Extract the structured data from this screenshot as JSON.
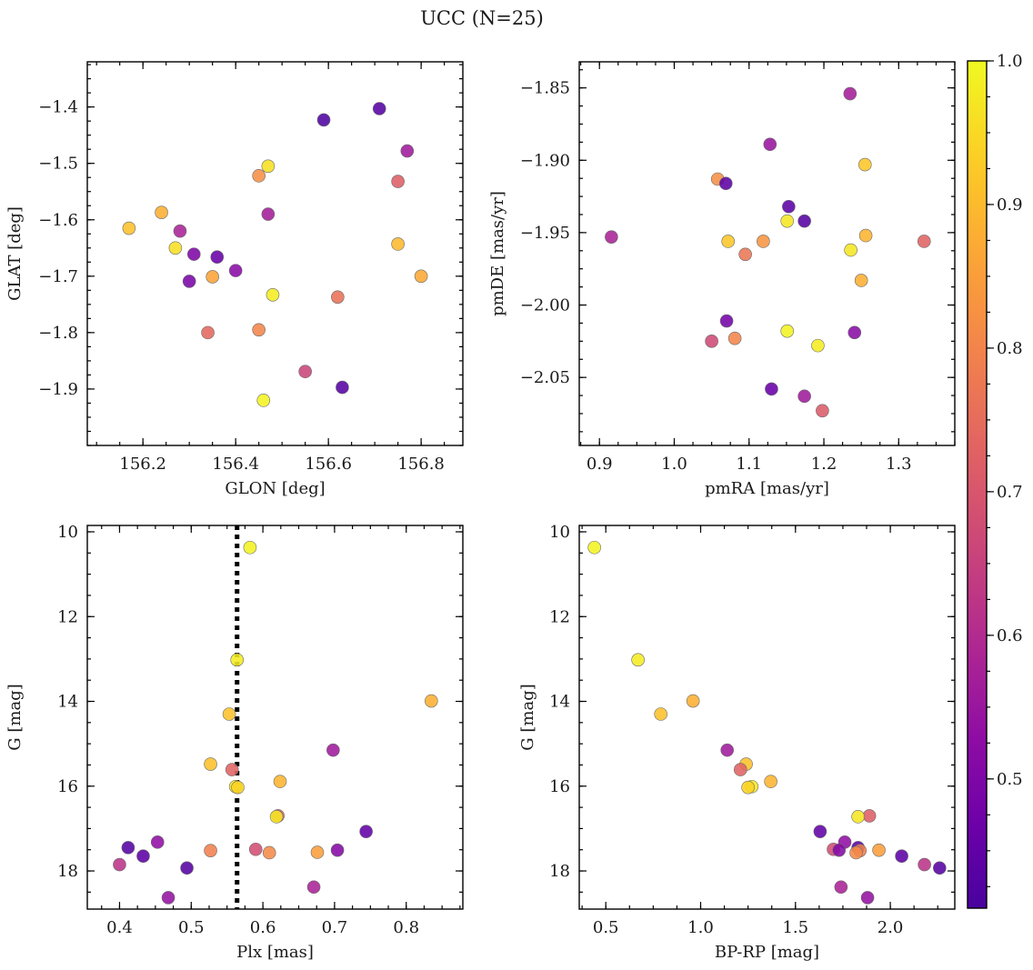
{
  "figure": {
    "title": "UCC (N=25)",
    "colorbar": {
      "colormap": "plasma",
      "range": [
        0.41,
        1.0
      ],
      "ticks": [
        "0.5",
        "0.6",
        "0.7",
        "0.8",
        "0.9",
        "1.0"
      ],
      "tick_values": [
        0.5,
        0.6,
        0.7,
        0.8,
        0.9,
        1.0
      ]
    }
  },
  "chart_data": [
    {
      "type": "scatter",
      "name": "sky-positions",
      "xlabel": "GLON [deg]",
      "ylabel": "GLAT [deg]",
      "xlim": [
        156.08,
        156.89
      ],
      "ylim": [
        -2.0,
        -1.32
      ],
      "y_inverted": false,
      "xticks": [
        "156.2",
        "156.4",
        "156.6",
        "156.8"
      ],
      "xtick_values": [
        156.2,
        156.4,
        156.6,
        156.8
      ],
      "yticks": [
        "-1.9",
        "-1.8",
        "-1.7",
        "-1.6",
        "-1.5",
        "-1.4"
      ],
      "ytick_values": [
        -1.9,
        -1.8,
        -1.7,
        -1.6,
        -1.5,
        -1.4
      ],
      "points": [
        {
          "x": 156.59,
          "y": -1.423,
          "c": 0.42
        },
        {
          "x": 156.71,
          "y": -1.403,
          "c": 0.43
        },
        {
          "x": 156.77,
          "y": -1.478,
          "c": 0.56
        },
        {
          "x": 156.47,
          "y": -1.505,
          "c": 0.96
        },
        {
          "x": 156.45,
          "y": -1.522,
          "c": 0.82
        },
        {
          "x": 156.75,
          "y": -1.532,
          "c": 0.72
        },
        {
          "x": 156.24,
          "y": -1.587,
          "c": 0.88
        },
        {
          "x": 156.47,
          "y": -1.59,
          "c": 0.57
        },
        {
          "x": 156.17,
          "y": -1.615,
          "c": 0.91
        },
        {
          "x": 156.28,
          "y": -1.62,
          "c": 0.58
        },
        {
          "x": 156.75,
          "y": -1.643,
          "c": 0.9
        },
        {
          "x": 156.27,
          "y": -1.65,
          "c": 0.96
        },
        {
          "x": 156.31,
          "y": -1.661,
          "c": 0.5
        },
        {
          "x": 156.36,
          "y": -1.666,
          "c": 0.46
        },
        {
          "x": 156.4,
          "y": -1.69,
          "c": 0.52
        },
        {
          "x": 156.35,
          "y": -1.701,
          "c": 0.86
        },
        {
          "x": 156.8,
          "y": -1.7,
          "c": 0.87
        },
        {
          "x": 156.3,
          "y": -1.709,
          "c": 0.49
        },
        {
          "x": 156.48,
          "y": -1.733,
          "c": 0.98
        },
        {
          "x": 156.62,
          "y": -1.737,
          "c": 0.76
        },
        {
          "x": 156.34,
          "y": -1.8,
          "c": 0.74
        },
        {
          "x": 156.45,
          "y": -1.795,
          "c": 0.8
        },
        {
          "x": 156.55,
          "y": -1.869,
          "c": 0.66
        },
        {
          "x": 156.63,
          "y": -1.897,
          "c": 0.43
        },
        {
          "x": 156.46,
          "y": -1.92,
          "c": 0.99
        }
      ]
    },
    {
      "type": "scatter",
      "name": "proper-motions",
      "xlabel": "pmRA [mas/yr]",
      "ylabel": "pmDE [mas/yr]",
      "xlim": [
        0.873,
        1.375
      ],
      "ylim": [
        -2.097,
        -1.832
      ],
      "y_inverted": false,
      "xticks": [
        "0.9",
        "1.0",
        "1.1",
        "1.2",
        "1.3"
      ],
      "xtick_values": [
        0.9,
        1.0,
        1.1,
        1.2,
        1.3
      ],
      "yticks": [
        "-2.05",
        "-2.00",
        "-1.95",
        "-1.90",
        "-1.85"
      ],
      "ytick_values": [
        -2.05,
        -2.0,
        -1.95,
        -1.9,
        -1.85
      ],
      "points": [
        {
          "x": 1.235,
          "y": -1.854,
          "c": 0.57
        },
        {
          "x": 1.128,
          "y": -1.889,
          "c": 0.55
        },
        {
          "x": 1.255,
          "y": -1.903,
          "c": 0.92
        },
        {
          "x": 1.058,
          "y": -1.913,
          "c": 0.82
        },
        {
          "x": 1.069,
          "y": -1.916,
          "c": 0.44
        },
        {
          "x": 1.153,
          "y": -1.932,
          "c": 0.44
        },
        {
          "x": 1.151,
          "y": -1.942,
          "c": 0.97
        },
        {
          "x": 1.174,
          "y": -1.942,
          "c": 0.43
        },
        {
          "x": 1.256,
          "y": -1.952,
          "c": 0.89
        },
        {
          "x": 0.916,
          "y": -1.953,
          "c": 0.58
        },
        {
          "x": 1.072,
          "y": -1.956,
          "c": 0.92
        },
        {
          "x": 1.119,
          "y": -1.956,
          "c": 0.83
        },
        {
          "x": 1.334,
          "y": -1.956,
          "c": 0.73
        },
        {
          "x": 1.236,
          "y": -1.962,
          "c": 0.97
        },
        {
          "x": 1.095,
          "y": -1.965,
          "c": 0.77
        },
        {
          "x": 1.25,
          "y": -1.983,
          "c": 0.88
        },
        {
          "x": 1.07,
          "y": -2.011,
          "c": 0.48
        },
        {
          "x": 1.151,
          "y": -2.018,
          "c": 0.99
        },
        {
          "x": 1.241,
          "y": -2.019,
          "c": 0.52
        },
        {
          "x": 1.081,
          "y": -2.023,
          "c": 0.8
        },
        {
          "x": 1.05,
          "y": -2.025,
          "c": 0.67
        },
        {
          "x": 1.192,
          "y": -2.028,
          "c": 0.98
        },
        {
          "x": 1.13,
          "y": -2.058,
          "c": 0.46
        },
        {
          "x": 1.174,
          "y": -2.063,
          "c": 0.56
        },
        {
          "x": 1.198,
          "y": -2.073,
          "c": 0.71
        }
      ]
    },
    {
      "type": "scatter",
      "name": "parallax-magnitude",
      "xlabel": "Plx [mas]",
      "ylabel": "G [mag]",
      "xlim": [
        0.355,
        0.879
      ],
      "ylim": [
        9.85,
        18.9
      ],
      "y_inverted": true,
      "xticks": [
        "0.4",
        "0.5",
        "0.6",
        "0.7",
        "0.8"
      ],
      "xtick_values": [
        0.4,
        0.5,
        0.6,
        0.7,
        0.8
      ],
      "yticks": [
        "10",
        "12",
        "14",
        "16",
        "18"
      ],
      "ytick_values": [
        10,
        12,
        14,
        16,
        18
      ],
      "vline": 0.564,
      "points": [
        {
          "x": 0.582,
          "y": 10.37,
          "c": 0.99
        },
        {
          "x": 0.564,
          "y": 13.02,
          "c": 0.98
        },
        {
          "x": 0.553,
          "y": 14.3,
          "c": 0.91
        },
        {
          "x": 0.835,
          "y": 13.99,
          "c": 0.88
        },
        {
          "x": 0.698,
          "y": 15.15,
          "c": 0.56
        },
        {
          "x": 0.527,
          "y": 15.48,
          "c": 0.91
        },
        {
          "x": 0.557,
          "y": 15.61,
          "c": 0.73
        },
        {
          "x": 0.624,
          "y": 15.89,
          "c": 0.89
        },
        {
          "x": 0.562,
          "y": 16.01,
          "c": 0.97
        },
        {
          "x": 0.565,
          "y": 16.03,
          "c": 0.94
        },
        {
          "x": 0.621,
          "y": 16.7,
          "c": 0.72
        },
        {
          "x": 0.619,
          "y": 16.72,
          "c": 0.97
        },
        {
          "x": 0.744,
          "y": 17.07,
          "c": 0.45
        },
        {
          "x": 0.453,
          "y": 17.32,
          "c": 0.53
        },
        {
          "x": 0.412,
          "y": 17.45,
          "c": 0.43
        },
        {
          "x": 0.527,
          "y": 17.52,
          "c": 0.79
        },
        {
          "x": 0.59,
          "y": 17.49,
          "c": 0.68
        },
        {
          "x": 0.609,
          "y": 17.57,
          "c": 0.81
        },
        {
          "x": 0.676,
          "y": 17.56,
          "c": 0.85
        },
        {
          "x": 0.704,
          "y": 17.51,
          "c": 0.51
        },
        {
          "x": 0.433,
          "y": 17.65,
          "c": 0.44
        },
        {
          "x": 0.4,
          "y": 17.85,
          "c": 0.62
        },
        {
          "x": 0.494,
          "y": 17.93,
          "c": 0.43
        },
        {
          "x": 0.671,
          "y": 18.38,
          "c": 0.58
        },
        {
          "x": 0.468,
          "y": 18.63,
          "c": 0.54
        }
      ]
    },
    {
      "type": "scatter",
      "name": "color-magnitude",
      "xlabel": "BP-RP [mag]",
      "ylabel": "G [mag]",
      "xlim": [
        0.36,
        2.34
      ],
      "ylim": [
        9.85,
        18.9
      ],
      "y_inverted": true,
      "xticks": [
        "0.5",
        "1.0",
        "1.5",
        "2.0"
      ],
      "xtick_values": [
        0.5,
        1.0,
        1.5,
        2.0
      ],
      "yticks": [
        "10",
        "12",
        "14",
        "16",
        "18"
      ],
      "ytick_values": [
        10,
        12,
        14,
        16,
        18
      ],
      "points": [
        {
          "x": 0.44,
          "y": 10.37,
          "c": 0.99
        },
        {
          "x": 0.67,
          "y": 13.02,
          "c": 0.98
        },
        {
          "x": 0.79,
          "y": 14.3,
          "c": 0.91
        },
        {
          "x": 0.96,
          "y": 13.99,
          "c": 0.88
        },
        {
          "x": 1.14,
          "y": 15.15,
          "c": 0.56
        },
        {
          "x": 1.24,
          "y": 15.48,
          "c": 0.91
        },
        {
          "x": 1.21,
          "y": 15.61,
          "c": 0.73
        },
        {
          "x": 1.37,
          "y": 15.89,
          "c": 0.89
        },
        {
          "x": 1.27,
          "y": 16.01,
          "c": 0.97
        },
        {
          "x": 1.25,
          "y": 16.03,
          "c": 0.94
        },
        {
          "x": 1.89,
          "y": 16.7,
          "c": 0.72
        },
        {
          "x": 1.83,
          "y": 16.72,
          "c": 0.97
        },
        {
          "x": 1.63,
          "y": 17.07,
          "c": 0.45
        },
        {
          "x": 1.76,
          "y": 17.32,
          "c": 0.53
        },
        {
          "x": 1.83,
          "y": 17.45,
          "c": 0.43
        },
        {
          "x": 1.84,
          "y": 17.52,
          "c": 0.79
        },
        {
          "x": 1.7,
          "y": 17.49,
          "c": 0.68
        },
        {
          "x": 1.82,
          "y": 17.57,
          "c": 0.81
        },
        {
          "x": 1.94,
          "y": 17.51,
          "c": 0.85
        },
        {
          "x": 1.73,
          "y": 17.51,
          "c": 0.51
        },
        {
          "x": 2.06,
          "y": 17.65,
          "c": 0.44
        },
        {
          "x": 2.18,
          "y": 17.85,
          "c": 0.62
        },
        {
          "x": 2.26,
          "y": 17.93,
          "c": 0.43
        },
        {
          "x": 1.74,
          "y": 18.38,
          "c": 0.58
        },
        {
          "x": 1.88,
          "y": 18.63,
          "c": 0.54
        }
      ]
    }
  ]
}
